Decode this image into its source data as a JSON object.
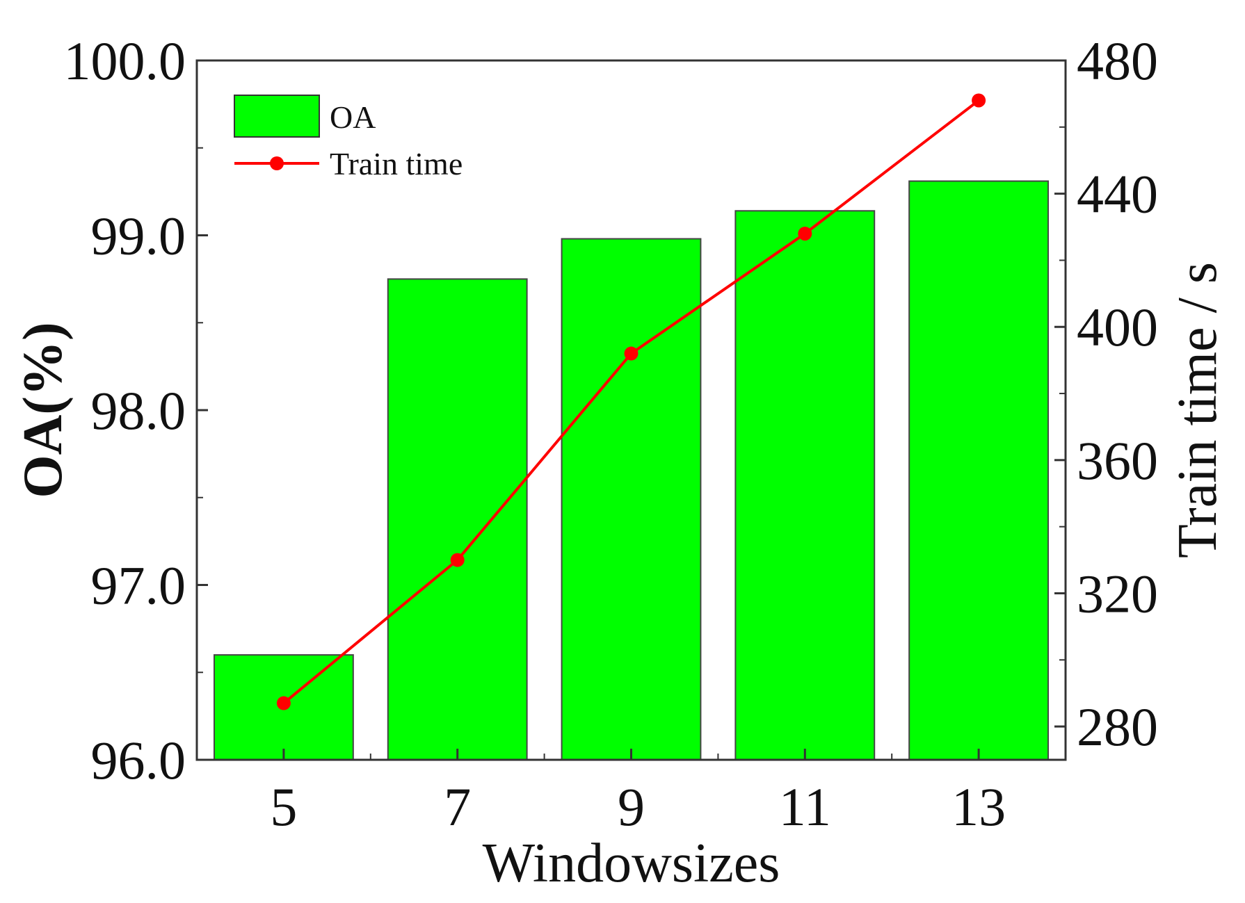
{
  "chart_data": {
    "type": "bar",
    "categories": [
      "5",
      "7",
      "9",
      "11",
      "13"
    ],
    "series": [
      {
        "name": "OA",
        "type": "bar",
        "axis": "left",
        "color": "#00ff00",
        "values": [
          96.6,
          98.75,
          98.98,
          99.14,
          99.31
        ]
      },
      {
        "name": "Train time",
        "type": "line",
        "axis": "right",
        "color": "#ff0000",
        "marker": "circle",
        "values": [
          287,
          330,
          392,
          428,
          468
        ]
      }
    ],
    "xlabel": "Windowsizes",
    "ylabel": "OA(%)",
    "y2label": "Train time / s",
    "ylim": [
      96.0,
      100.0
    ],
    "y2lim": [
      270,
      480
    ],
    "yticks": [
      "96.0",
      "97.0",
      "98.0",
      "99.0",
      "100.0"
    ],
    "y2ticks": [
      "280",
      "320",
      "360",
      "400",
      "440",
      "480"
    ],
    "legend": {
      "placement": "top-left",
      "items": [
        "OA",
        "Train time"
      ]
    },
    "grid": false
  }
}
